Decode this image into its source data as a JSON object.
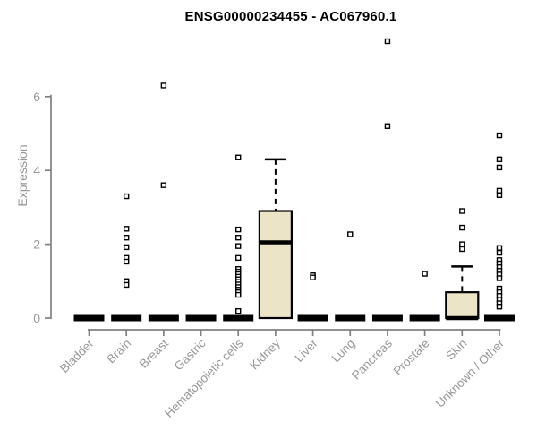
{
  "chart_data": {
    "type": "boxplot",
    "title": "ENSG00000234455 - AC067960.1",
    "ylabel": "Expression",
    "xlabel": "",
    "ylim": [
      0,
      6
    ],
    "yticks": [
      0,
      2,
      4,
      6
    ],
    "grid": false,
    "legend": false,
    "categories": [
      "Bladder",
      "Brain",
      "Breast",
      "Gastric",
      "Hematopoietic cells",
      "Kidney",
      "Liver",
      "Lung",
      "Pancreas",
      "Prostate",
      "Skin",
      "Unknown / Other"
    ],
    "boxes": [
      {
        "label": "Bladder",
        "q1": 0,
        "median": 0,
        "q3": 0,
        "whisker_low": 0,
        "whisker_high": 0,
        "outliers": []
      },
      {
        "label": "Brain",
        "q1": 0,
        "median": 0,
        "q3": 0,
        "whisker_low": 0,
        "whisker_high": 0,
        "outliers": [
          3.3,
          2.42,
          2.18,
          1.92,
          1.63,
          1.53,
          1.0,
          0.9
        ]
      },
      {
        "label": "Breast",
        "q1": 0,
        "median": 0,
        "q3": 0,
        "whisker_low": 0,
        "whisker_high": 0,
        "outliers": [
          6.3,
          3.6
        ]
      },
      {
        "label": "Gastric",
        "q1": 0,
        "median": 0,
        "q3": 0,
        "whisker_low": 0,
        "whisker_high": 0,
        "outliers": []
      },
      {
        "label": "Hematopoietic cells",
        "q1": 0,
        "median": 0,
        "q3": 0,
        "whisker_low": 0,
        "whisker_high": 0,
        "outliers": [
          4.35,
          2.4,
          2.18,
          1.95,
          1.63,
          1.33,
          1.26,
          1.19,
          1.12,
          1.05,
          0.98,
          0.91,
          0.84,
          0.77,
          0.7,
          0.63,
          0.19
        ]
      },
      {
        "label": "Kidney",
        "q1": 0,
        "median": 2.05,
        "q3": 2.9,
        "whisker_low": 0,
        "whisker_high": 4.3,
        "outliers": []
      },
      {
        "label": "Liver",
        "q1": 0,
        "median": 0,
        "q3": 0,
        "whisker_low": 0,
        "whisker_high": 0,
        "outliers": [
          1.16,
          1.1
        ]
      },
      {
        "label": "Lung",
        "q1": 0,
        "median": 0,
        "q3": 0,
        "whisker_low": 0,
        "whisker_high": 0,
        "outliers": [
          2.27
        ]
      },
      {
        "label": "Pancreas",
        "q1": 0,
        "median": 0,
        "q3": 0,
        "whisker_low": 0,
        "whisker_high": 0,
        "outliers": [
          7.5,
          5.2
        ]
      },
      {
        "label": "Prostate",
        "q1": 0,
        "median": 0,
        "q3": 0,
        "whisker_low": 0,
        "whisker_high": 0,
        "outliers": [
          1.2
        ]
      },
      {
        "label": "Skin",
        "q1": 0,
        "median": 0,
        "q3": 0.7,
        "whisker_low": 0,
        "whisker_high": 1.4,
        "outliers": [
          2.9,
          2.45,
          2.0,
          1.87
        ]
      },
      {
        "label": "Unknown / Other",
        "q1": 0,
        "median": 0,
        "q3": 0,
        "whisker_low": 0,
        "whisker_high": 0,
        "outliers": [
          4.95,
          4.3,
          4.08,
          3.45,
          3.33,
          1.9,
          1.77,
          1.57,
          1.48,
          1.38,
          1.28,
          1.18,
          1.08,
          0.8,
          0.7,
          0.6,
          0.5,
          0.4,
          0.31
        ]
      }
    ],
    "colors": {
      "box_fill": "#ece4c7",
      "box_border": "#000000",
      "median": "#000000",
      "zero_bar": "#000000",
      "outlier_fill": "#ffffff",
      "outlier_border": "#000000",
      "axis_line": "#808080",
      "axis_text": "#969696",
      "title_text": "#000000",
      "background": "#ffffff"
    }
  }
}
